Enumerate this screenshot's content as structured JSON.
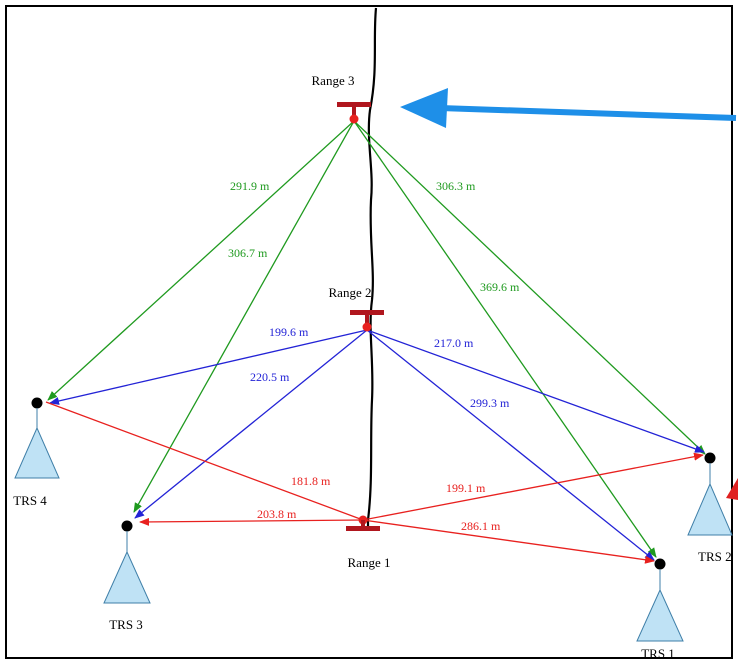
{
  "ranges": [
    {
      "id": "range-1",
      "label": "Range 1"
    },
    {
      "id": "range-2",
      "label": "Range 2"
    },
    {
      "id": "range-3",
      "label": "Range 3"
    }
  ],
  "stations": [
    {
      "id": "trs-1",
      "label": "TRS 1"
    },
    {
      "id": "trs-2",
      "label": "TRS 2"
    },
    {
      "id": "trs-3",
      "label": "TRS 3"
    },
    {
      "id": "trs-4",
      "label": "TRS 4"
    }
  ],
  "measurements": {
    "range_1": [
      {
        "to": "TRS 4",
        "distance": "181.8 m"
      },
      {
        "to": "TRS 3",
        "distance": "203.8 m"
      },
      {
        "to": "TRS 2",
        "distance": "199.1 m"
      },
      {
        "to": "TRS 1",
        "distance": "286.1 m"
      }
    ],
    "range_2": [
      {
        "to": "TRS 4",
        "distance": "199.6 m"
      },
      {
        "to": "TRS 3",
        "distance": "220.5 m"
      },
      {
        "to": "TRS 2",
        "distance": "217.0 m"
      },
      {
        "to": "TRS 1",
        "distance": "299.3 m"
      }
    ],
    "range_3": [
      {
        "to": "TRS 4",
        "distance": "291.9 m"
      },
      {
        "to": "TRS 3",
        "distance": "306.7 m"
      },
      {
        "to": "TRS 2",
        "distance": "306.3 m"
      },
      {
        "to": "TRS 1",
        "distance": "369.6 m"
      }
    ]
  },
  "colors": {
    "range_1": "#e8211f",
    "range_2": "#2323d6",
    "range_3": "#1f9a1f",
    "marker": "#b0161e",
    "station_fill": "#bfe2f5",
    "station_stroke": "#3f7fa8",
    "pointer_arrow": "#1e8fe8",
    "pointer_arrow_red": "#e02020",
    "path": "#000000"
  }
}
